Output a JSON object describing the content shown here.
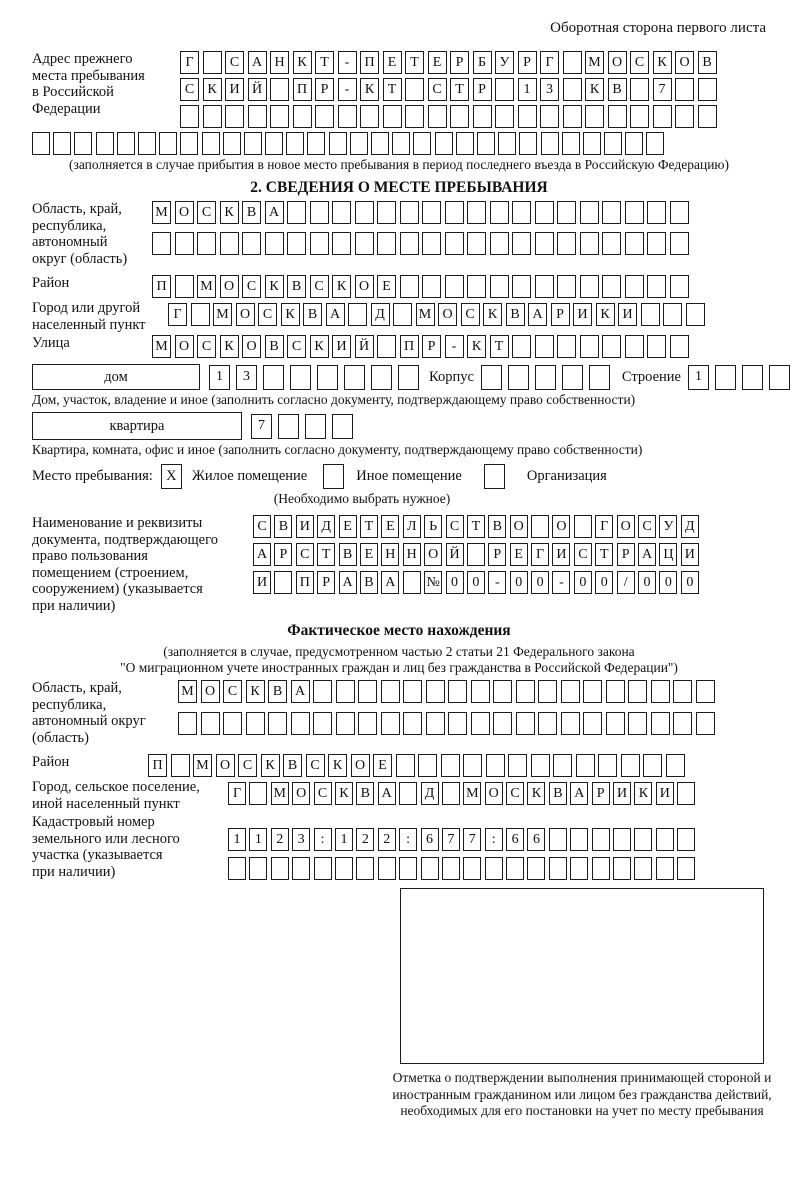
{
  "page": {
    "header_note": "Оборотная сторона первого листа"
  },
  "prev_address": {
    "label": "Адрес прежнего\nместа пребывания\nв Российской\nФедерации",
    "rows": [
      {
        "chars": "Г САНКТ-ПЕТЕРБУРГ МОСКОВ",
        "len": 24
      },
      {
        "chars": "СКИЙ ПР-КТ СТР 13 КВ 7",
        "len": 24
      },
      {
        "chars": "",
        "len": 24
      },
      {
        "chars": "",
        "len": 30
      }
    ],
    "note": "(заполняется в случае прибытия в новое место пребывания в период последнего въезда в Российскую Федерацию)"
  },
  "section2": {
    "title": "2. СВЕДЕНИЯ О МЕСТЕ ПРЕБЫВАНИЯ",
    "region": {
      "label": "Область, край,\nреспублика,\nавтономный\nокруг (область)",
      "rows": [
        {
          "chars": "МОСКВА",
          "len": 24
        },
        {
          "chars": "",
          "len": 24
        }
      ]
    },
    "district": {
      "label": "Район",
      "row": {
        "chars": "П МОСКВСКОЕ",
        "len": 24
      }
    },
    "city": {
      "label": "Город или другой\nнаселенный пункт",
      "row": {
        "chars": "Г МОСКВА Д МОСКВАРИКИ",
        "len": 24
      }
    },
    "street": {
      "label": "Улица",
      "row": {
        "chars": "МОСКОВСКИЙ ПР-КТ",
        "len": 24
      }
    },
    "house": {
      "field_label": "дом",
      "cells": {
        "chars": "13",
        "len": 8
      },
      "korpus_label": "Корпус",
      "korpus_cells": {
        "chars": "",
        "len": 5
      },
      "stroenie_label": "Строение",
      "stroenie_cells": {
        "chars": "1",
        "len": 4
      },
      "note": "Дом, участок, владение и иное (заполнить согласно документу, подтверждающему право собственности)"
    },
    "apartment": {
      "field_label": "квартира",
      "cells": {
        "chars": "7",
        "len": 4
      },
      "note": "Квартира, комната, офис и иное (заполнить согласно документу, подтверждающему право собственности)"
    },
    "stay_type": {
      "label": "Место пребывания:",
      "options": [
        {
          "label": "Жилое помещение",
          "checked": "X"
        },
        {
          "label": "Иное помещение",
          "checked": ""
        },
        {
          "label": "Организация",
          "checked": ""
        }
      ],
      "note": "(Необходимо выбрать нужное)"
    },
    "document": {
      "label": "Наименование и реквизиты\nдокумента, подтверждающего\nправо пользования\nпомещением (строением,\nсооружением) (указывается\nпри наличии)",
      "rows": [
        {
          "chars": "СВИДЕТЕЛЬСТВО О ГОСУД",
          "len": 21
        },
        {
          "chars": "АРСТВЕННОЙ РЕГИСТРАЦИ",
          "len": 21
        },
        {
          "chars": "И ПРАВА №00-00-00/000",
          "len": 21
        }
      ]
    }
  },
  "actual_location": {
    "title": "Фактическое место нахождения",
    "note_line1": "(заполняется в случае, предусмотренном частью 2 статьи 21 Федерального закона",
    "note_line2": "\"О миграционном учете иностранных граждан и лиц без гражданства в Российской Федерации\")",
    "region": {
      "label": "Область, край,\nреспублика,\nавтономный округ\n(область)",
      "rows": [
        {
          "chars": "МОСКВА",
          "len": 24
        },
        {
          "chars": "",
          "len": 24
        }
      ]
    },
    "district": {
      "label": "Район",
      "row": {
        "chars": "П МОСКВСКОЕ",
        "len": 24
      }
    },
    "city": {
      "label": "Город, сельское поселение,\nиной населенный пункт",
      "row": {
        "chars": "Г МОСКВА Д МОСКВАРИКИ",
        "len": 22
      }
    },
    "cadastral": {
      "label": "Кадастровый номер\nземельного или лесного\nучастка (указывается\nпри наличии)",
      "rows": [
        {
          "chars": "1123:122:677:66",
          "len": 22
        },
        {
          "chars": "",
          "len": 22
        }
      ]
    }
  },
  "confirmation": {
    "caption": "Отметка о подтверждении выполнения принимающей стороной и иностранным гражданином или лицом без гражданства действий, необходимых для его постановки на учет по месту пребывания"
  }
}
